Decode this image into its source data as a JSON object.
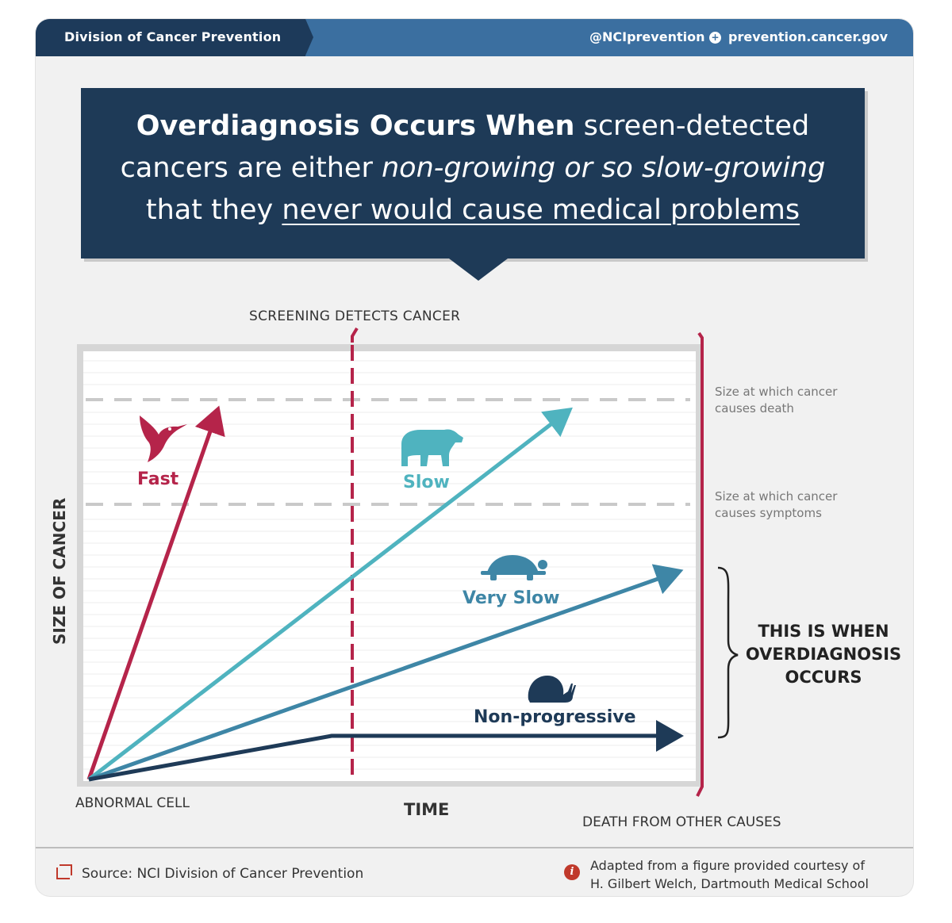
{
  "header": {
    "division": "Division of Cancer Prevention",
    "twitter": "@NCIprevention",
    "website": "prevention.cancer.gov"
  },
  "banner": {
    "bold": "Overdiagnosis Occurs When",
    "line1_rest": " screen-detected",
    "line2_plain": "cancers are either ",
    "line2_italic": "non-growing or so slow-growing",
    "line3_plain": "that they ",
    "line3_underlined": "never would cause medical problems"
  },
  "diagram": {
    "screening_label": "SCREENING DETECTS CANCER",
    "y_axis_label": "SIZE OF CANCER",
    "x_axis_label": "TIME",
    "origin_label": "ABNORMAL CELL",
    "death_other_label": "DEATH FROM OTHER CAUSES",
    "threshold_death": [
      "Size at which cancer",
      "causes death"
    ],
    "threshold_symptoms": [
      "Size at which cancer",
      "causes symptoms"
    ],
    "overdiagnosis_note": [
      "THIS IS WHEN",
      "OVERDIAGNOSIS",
      "OCCURS"
    ],
    "series": [
      {
        "name": "Fast",
        "icon": "hummingbird-icon",
        "color": "#b5244a"
      },
      {
        "name": "Slow",
        "icon": "polar-bear-icon",
        "color": "#4fb3bf"
      },
      {
        "name": "Very Slow",
        "icon": "turtle-icon",
        "color": "#3e86a6"
      },
      {
        "name": "Non-progressive",
        "icon": "snail-icon",
        "color": "#1e3a57"
      }
    ]
  },
  "footer": {
    "source": "Source: NCI Division of Cancer Prevention",
    "credit_line1": "Adapted from a figure provided courtesy of",
    "credit_line2": "H. Gilbert Welch, Dartmouth Medical School"
  }
}
